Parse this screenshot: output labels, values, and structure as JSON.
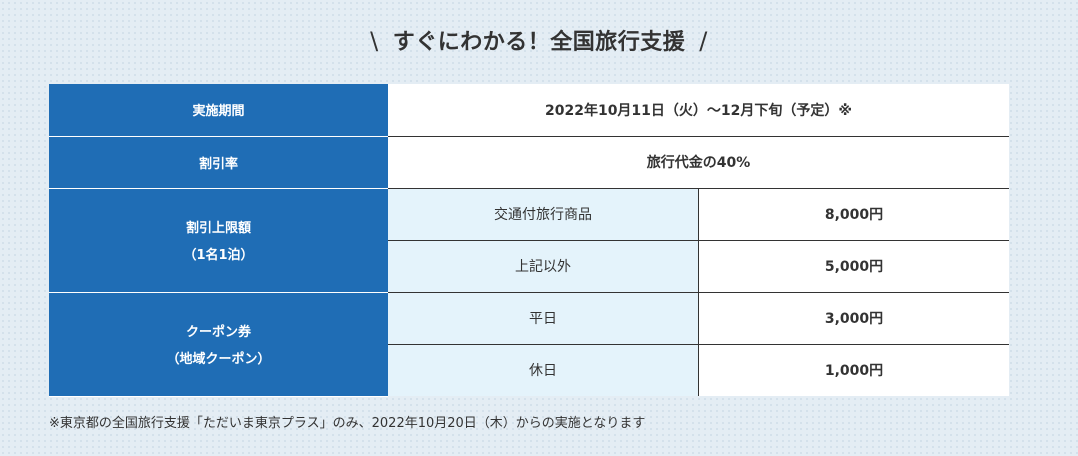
{
  "heading": {
    "slash_left": "\\",
    "title": "すぐにわかる！全国旅行支援",
    "slash_right": "/"
  },
  "table": {
    "period": {
      "label": "実施期間",
      "value": "2022年10月11日（火）〜12月下旬（予定）※"
    },
    "discount_rate": {
      "label": "割引率",
      "value": "旅行代金の40%"
    },
    "discount_cap": {
      "label_line1": "割引上限額",
      "label_line2": "（1名1泊）",
      "rows": [
        {
          "category": "交通付旅行商品",
          "amount": "8,000円"
        },
        {
          "category": "上記以外",
          "amount": "5,000円"
        }
      ]
    },
    "coupon": {
      "label_line1": "クーポン券",
      "label_line2": "（地域クーポン）",
      "rows": [
        {
          "category": "平日",
          "amount": "3,000円"
        },
        {
          "category": "休日",
          "amount": "1,000円"
        }
      ]
    }
  },
  "footnote": "※東京都の全国旅行支援「ただいま東京プラス」のみ、2022年10月20日（木）からの実施となります"
}
